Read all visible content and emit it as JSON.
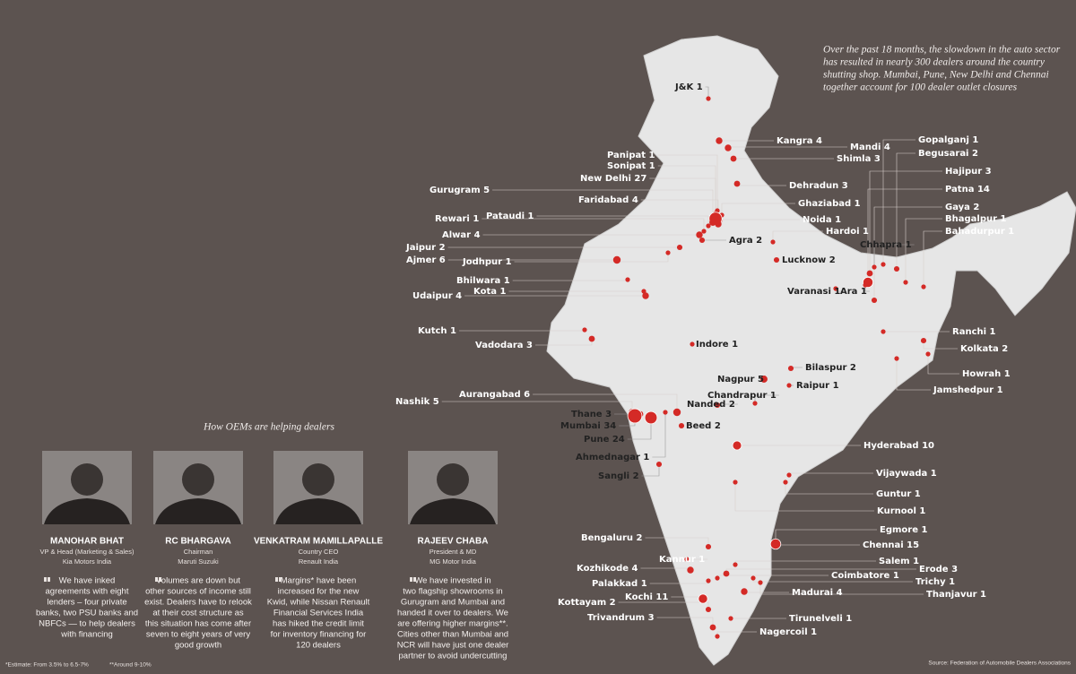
{
  "intro": [
    "Over the past 18 months, the slowdown in the auto sector",
    "has resulted in nearly 300 dealers around the country",
    "shutting shop. Mumbai, Pune, New Delhi and Chennai",
    "together account for 100 dealer outlet closures"
  ],
  "cities": [
    {
      "name": "J&K",
      "count": 1
    },
    {
      "name": "Kangra",
      "count": 4
    },
    {
      "name": "Mandi",
      "count": 4
    },
    {
      "name": "Shimla",
      "count": 3
    },
    {
      "name": "Gopalganj",
      "count": 1
    },
    {
      "name": "Begusarai",
      "count": 2
    },
    {
      "name": "Hajipur",
      "count": 3
    },
    {
      "name": "Patna",
      "count": 14
    },
    {
      "name": "Gaya",
      "count": 2
    },
    {
      "name": "Bhagalpur",
      "count": 1
    },
    {
      "name": "Bahadurpur",
      "count": 1
    },
    {
      "name": "Dehradun",
      "count": 3
    },
    {
      "name": "Ghaziabad",
      "count": 1
    },
    {
      "name": "Noida",
      "count": 1
    },
    {
      "name": "Hardoi",
      "count": 1
    },
    {
      "name": "Chhapra",
      "count": 1
    },
    {
      "name": "Agra",
      "count": 2
    },
    {
      "name": "Lucknow",
      "count": 2
    },
    {
      "name": "Varanasi",
      "count": 1
    },
    {
      "name": "Ara",
      "count": 1
    },
    {
      "name": "Panipat",
      "count": 1
    },
    {
      "name": "Sonipat",
      "count": 1
    },
    {
      "name": "New Delhi",
      "count": 27
    },
    {
      "name": "Faridabad",
      "count": 4
    },
    {
      "name": "Gurugram",
      "count": 5
    },
    {
      "name": "Pataudi",
      "count": 1
    },
    {
      "name": "Rewari",
      "count": 1
    },
    {
      "name": "Alwar",
      "count": 4
    },
    {
      "name": "Jaipur",
      "count": 2
    },
    {
      "name": "Ajmer",
      "count": 6
    },
    {
      "name": "Jodhpur",
      "count": 1
    },
    {
      "name": "Bhilwara",
      "count": 1
    },
    {
      "name": "Kota",
      "count": 1
    },
    {
      "name": "Udaipur",
      "count": 4
    },
    {
      "name": "Kutch",
      "count": 1
    },
    {
      "name": "Vadodara",
      "count": 3
    },
    {
      "name": "Indore",
      "count": 1
    },
    {
      "name": "Ranchi",
      "count": 1
    },
    {
      "name": "Kolkata",
      "count": 2
    },
    {
      "name": "Howrah",
      "count": 1
    },
    {
      "name": "Jamshedpur",
      "count": 1
    },
    {
      "name": "Bilaspur",
      "count": 2
    },
    {
      "name": "Raipur",
      "count": 1
    },
    {
      "name": "Nagpur",
      "count": 5
    },
    {
      "name": "Chandrapur",
      "count": 1
    },
    {
      "name": "Aurangabad",
      "count": 6
    },
    {
      "name": "Nashik",
      "count": 5
    },
    {
      "name": "Nanded",
      "count": 2
    },
    {
      "name": "Thane",
      "count": 3
    },
    {
      "name": "Mumbai",
      "count": 34
    },
    {
      "name": "Pune",
      "count": 24
    },
    {
      "name": "Beed",
      "count": 2
    },
    {
      "name": "Ahmednagar",
      "count": 1
    },
    {
      "name": "Sangli",
      "count": 2
    },
    {
      "name": "Hyderabad",
      "count": 10
    },
    {
      "name": "Vijaywada",
      "count": 1
    },
    {
      "name": "Guntur",
      "count": 1
    },
    {
      "name": "Kurnool",
      "count": 1
    },
    {
      "name": "Egmore",
      "count": 1
    },
    {
      "name": "Chennai",
      "count": 15
    },
    {
      "name": "Bengaluru",
      "count": 2
    },
    {
      "name": "Salem",
      "count": 1
    },
    {
      "name": "Kannur",
      "count": 1
    },
    {
      "name": "Kozhikode",
      "count": 4
    },
    {
      "name": "Erode",
      "count": 3
    },
    {
      "name": "Coimbatore",
      "count": 1
    },
    {
      "name": "Trichy",
      "count": 1
    },
    {
      "name": "Palakkad",
      "count": 1
    },
    {
      "name": "Thanjavur",
      "count": 1
    },
    {
      "name": "Madurai",
      "count": 4
    },
    {
      "name": "Kochi",
      "count": 11
    },
    {
      "name": "Kottayam",
      "count": 2
    },
    {
      "name": "Trivandrum",
      "count": 3
    },
    {
      "name": "Tirunelveli",
      "count": 1
    },
    {
      "name": "Nagercoil",
      "count": 1
    }
  ],
  "section_title": "How OEMs are helping dealers",
  "people": [
    {
      "name": "MANOHAR BHAT",
      "role": [
        "VP & Head (Marketing & Sales)",
        "Kia Motors India"
      ],
      "quote": [
        "We have inked",
        "agreements with eight",
        "lenders – four private",
        "banks, two PSU banks and",
        "NBFCs — to help dealers",
        "with financing"
      ]
    },
    {
      "name": "RC BHARGAVA",
      "role": [
        "Chairman",
        "Maruti Suzuki"
      ],
      "quote": [
        "Volumes are down but",
        "other sources of income still",
        "exist. Dealers have to relook",
        "at their cost structure as",
        "this situation has come after",
        "seven to eight years of very",
        "good growth"
      ]
    },
    {
      "name": "VENKATRAM MAMILLAPALLE",
      "role": [
        "Country CEO",
        "Renault India"
      ],
      "quote": [
        "Margins* have been",
        "increased for the new",
        "Kwid, while Nissan Renault",
        "Financial Services India",
        "has hiked the credit limit",
        "for inventory financing for",
        "120 dealers"
      ]
    },
    {
      "name": "RAJEEV CHABA",
      "role": [
        "President & MD",
        "MG Motor India"
      ],
      "quote": [
        "We have invested in",
        "two flagship showrooms in",
        "Gurugram and Mumbai and",
        "handed it over to dealers. We",
        "are offering higher margins**.",
        "Cities other than Mumbai and",
        "NCR will have just one dealer",
        "partner to avoid undercutting"
      ]
    }
  ],
  "footnotes": [
    "*Estimate: From 3.5% to 6.5-7%",
    "**Around 9-10%"
  ],
  "source": "Source: Federation of Automobile Dealers Associations"
}
